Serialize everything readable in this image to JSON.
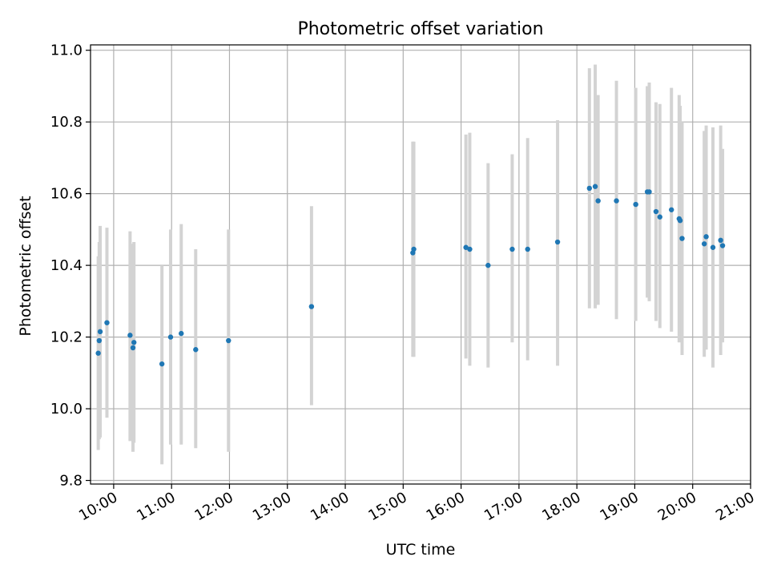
{
  "chart_data": {
    "type": "scatter",
    "title": "Photometric offset variation",
    "xlabel": "UTC time",
    "ylabel": "Photometric offset",
    "xlim": [
      "09:36",
      "21:00"
    ],
    "ylim": [
      9.79,
      11.015
    ],
    "x_ticks": [
      "10:00",
      "11:00",
      "12:00",
      "13:00",
      "14:00",
      "15:00",
      "16:00",
      "17:00",
      "18:00",
      "19:00",
      "20:00",
      "21:00"
    ],
    "y_ticks": [
      "9.8",
      "10.0",
      "10.2",
      "10.4",
      "10.6",
      "10.8",
      "11.0"
    ],
    "grid": true,
    "colors": {
      "point": "#1f77b4",
      "errorbar": "#d3d3d3",
      "grid": "#b0b0b0",
      "axis": "#000000"
    },
    "points": [
      {
        "x": "09:44",
        "y": 10.155,
        "ylow": 9.885,
        "yhigh": 10.425
      },
      {
        "x": "09:45",
        "y": 10.19,
        "ylow": 9.915,
        "yhigh": 10.465
      },
      {
        "x": "09:46",
        "y": 10.215,
        "ylow": 9.92,
        "yhigh": 10.51
      },
      {
        "x": "09:53",
        "y": 10.24,
        "ylow": 9.975,
        "yhigh": 10.505
      },
      {
        "x": "10:17",
        "y": 10.205,
        "ylow": 9.91,
        "yhigh": 10.495
      },
      {
        "x": "10:20",
        "y": 10.17,
        "ylow": 9.88,
        "yhigh": 10.46
      },
      {
        "x": "10:21",
        "y": 10.185,
        "ylow": 9.905,
        "yhigh": 10.465
      },
      {
        "x": "10:50",
        "y": 10.125,
        "ylow": 9.845,
        "yhigh": 10.4
      },
      {
        "x": "10:59",
        "y": 10.2,
        "ylow": 9.9,
        "yhigh": 10.5
      },
      {
        "x": "11:10",
        "y": 10.21,
        "ylow": 9.9,
        "yhigh": 10.515
      },
      {
        "x": "11:25",
        "y": 10.165,
        "ylow": 9.89,
        "yhigh": 10.445
      },
      {
        "x": "11:59",
        "y": 10.19,
        "ylow": 9.88,
        "yhigh": 10.5
      },
      {
        "x": "13:25",
        "y": 10.285,
        "ylow": 10.01,
        "yhigh": 10.565
      },
      {
        "x": "15:10",
        "y": 10.435,
        "ylow": 10.145,
        "yhigh": 10.745
      },
      {
        "x": "15:11",
        "y": 10.445,
        "ylow": 10.145,
        "yhigh": 10.745
      },
      {
        "x": "16:05",
        "y": 10.45,
        "ylow": 10.14,
        "yhigh": 10.765
      },
      {
        "x": "16:09",
        "y": 10.445,
        "ylow": 10.12,
        "yhigh": 10.77
      },
      {
        "x": "16:28",
        "y": 10.4,
        "ylow": 10.115,
        "yhigh": 10.685
      },
      {
        "x": "16:53",
        "y": 10.445,
        "ylow": 10.185,
        "yhigh": 10.71
      },
      {
        "x": "17:09",
        "y": 10.445,
        "ylow": 10.135,
        "yhigh": 10.755
      },
      {
        "x": "17:40",
        "y": 10.465,
        "ylow": 10.12,
        "yhigh": 10.805
      },
      {
        "x": "18:13",
        "y": 10.615,
        "ylow": 10.28,
        "yhigh": 10.95
      },
      {
        "x": "18:19",
        "y": 10.62,
        "ylow": 10.28,
        "yhigh": 10.96
      },
      {
        "x": "18:22",
        "y": 10.58,
        "ylow": 10.29,
        "yhigh": 10.875
      },
      {
        "x": "18:41",
        "y": 10.58,
        "ylow": 10.25,
        "yhigh": 10.915
      },
      {
        "x": "19:01",
        "y": 10.57,
        "ylow": 10.245,
        "yhigh": 10.895
      },
      {
        "x": "19:13",
        "y": 10.605,
        "ylow": 10.31,
        "yhigh": 10.9
      },
      {
        "x": "19:15",
        "y": 10.605,
        "ylow": 10.3,
        "yhigh": 10.91
      },
      {
        "x": "19:22",
        "y": 10.55,
        "ylow": 10.245,
        "yhigh": 10.855
      },
      {
        "x": "19:26",
        "y": 10.535,
        "ylow": 10.225,
        "yhigh": 10.85
      },
      {
        "x": "19:38",
        "y": 10.555,
        "ylow": 10.215,
        "yhigh": 10.895
      },
      {
        "x": "19:46",
        "y": 10.53,
        "ylow": 10.185,
        "yhigh": 10.875
      },
      {
        "x": "19:47",
        "y": 10.525,
        "ylow": 10.2,
        "yhigh": 10.845
      },
      {
        "x": "19:49",
        "y": 10.475,
        "ylow": 10.15,
        "yhigh": 10.8
      },
      {
        "x": "20:12",
        "y": 10.46,
        "ylow": 10.145,
        "yhigh": 10.775
      },
      {
        "x": "20:14",
        "y": 10.48,
        "ylow": 10.165,
        "yhigh": 10.79
      },
      {
        "x": "20:21",
        "y": 10.45,
        "ylow": 10.115,
        "yhigh": 10.785
      },
      {
        "x": "20:29",
        "y": 10.47,
        "ylow": 10.15,
        "yhigh": 10.79
      },
      {
        "x": "20:31",
        "y": 10.455,
        "ylow": 10.185,
        "yhigh": 10.725
      }
    ]
  }
}
